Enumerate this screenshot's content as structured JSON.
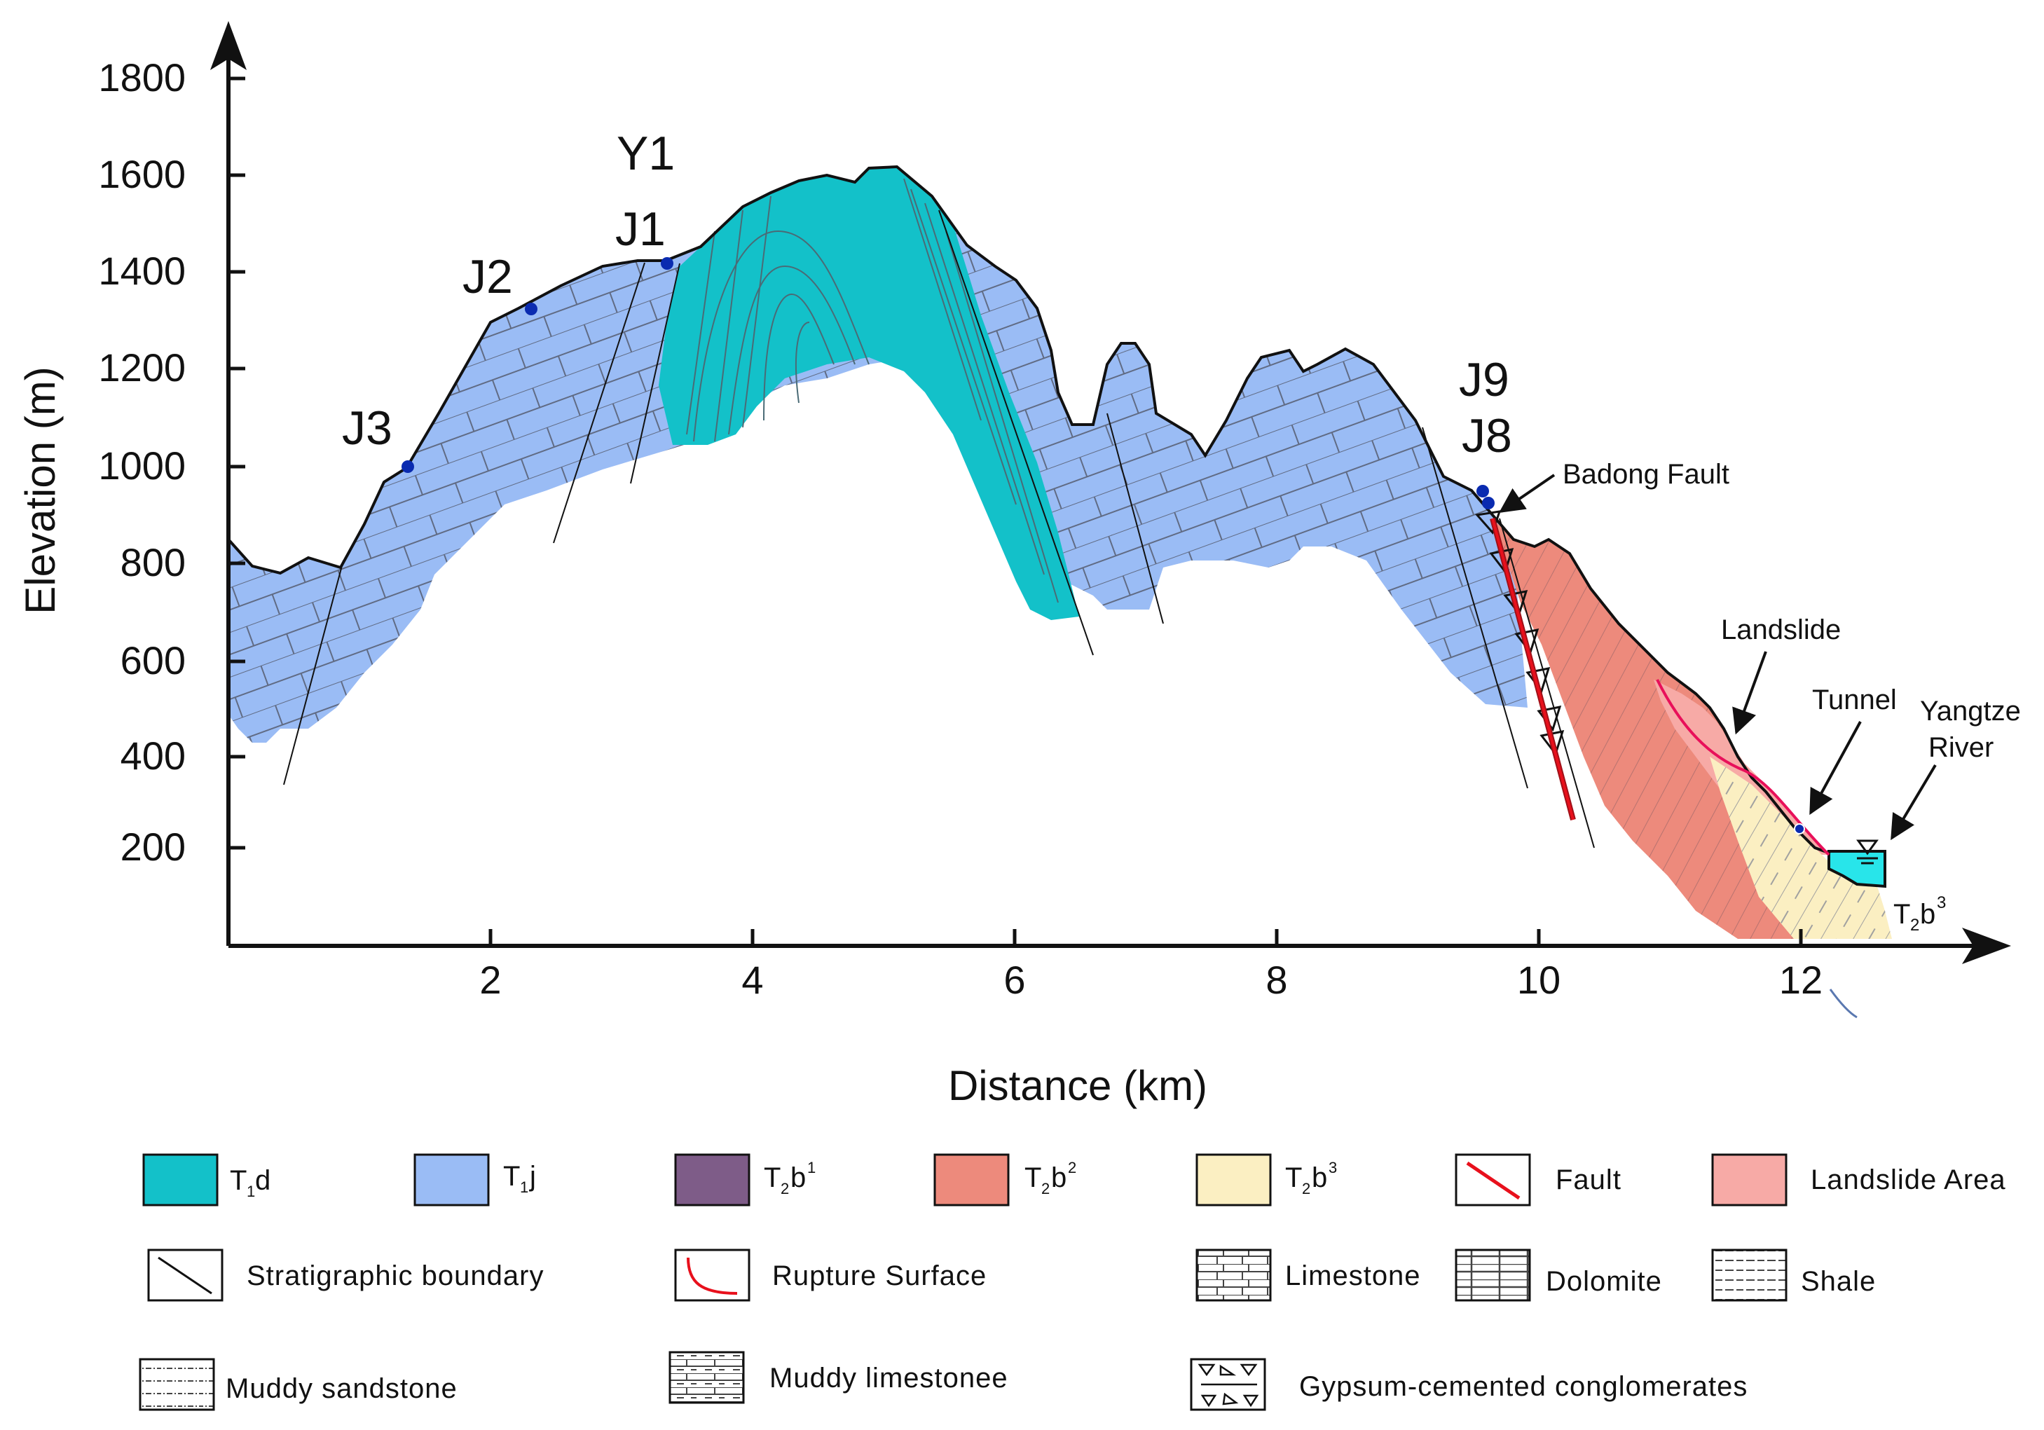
{
  "figure": {
    "x_axis_label": "Distance (km)",
    "y_axis_label": "Elevation (m)",
    "x_ticks": [
      "2",
      "4",
      "6",
      "8",
      "10",
      "12"
    ],
    "y_ticks": [
      "200",
      "400",
      "600",
      "800",
      "1000",
      "1200",
      "1400",
      "1600",
      "1800"
    ],
    "stations": {
      "y1": "Y1",
      "j1": "J1",
      "j2": "J2",
      "j3": "J3",
      "j9": "J9",
      "j8": "J8"
    },
    "annotations": {
      "badong_fault": "Badong Fault",
      "landslide": "Landslide",
      "tunnel": "Tunnel",
      "yangtze_line1": "Yangtze",
      "yangtze_line2": "River",
      "t2b3_base": "T",
      "t2b3_sub": "2",
      "t2b3_mid": "b",
      "t2b3_sup": "3"
    },
    "colors": {
      "t1d": "#13c1c9",
      "t1j": "#9abcf5",
      "t2b1": "#7e5c88",
      "t2b2": "#ed8a7c",
      "t2b3": "#fbefc2",
      "landslide_area": "#f7aaa6",
      "fault": "#e8101c",
      "river": "#28e5ea",
      "station_dot": "#0a2bb0"
    }
  },
  "legend": {
    "t1d": {
      "base": "T",
      "sub": "1",
      "suffix": "d"
    },
    "t1j": {
      "base": "T",
      "sub": "1",
      "suffix": "j"
    },
    "t2b1": {
      "base": "T",
      "sub": "2",
      "mid": "b",
      "sup": "1"
    },
    "t2b2": {
      "base": "T",
      "sub": "2",
      "mid": "b",
      "sup": "2"
    },
    "t2b3": {
      "base": "T",
      "sub": "2",
      "mid": "b",
      "sup": "3"
    },
    "fault": "Fault",
    "landslide_area": "Landslide Area",
    "stratigraphic_boundary": "Stratigraphic boundary",
    "rupture_surface": "Rupture Surface",
    "limestone": "Limestone",
    "dolomite": "Dolomite",
    "shale": "Shale",
    "muddy_sandstone": "Muddy sandstone",
    "muddy_limestone": "Muddy limestonee",
    "gypsum": "Gypsum-cemented conglomerates"
  }
}
